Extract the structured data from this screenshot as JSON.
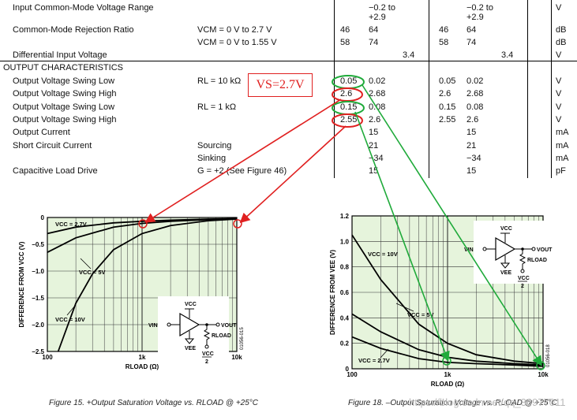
{
  "spec_table": {
    "rows": [
      {
        "param": "Input Common-Mode Voltage Range",
        "cond": "",
        "min1": "",
        "typ1": "−0.2 to",
        "typ1b": "+2.9",
        "max1": "",
        "min2": "",
        "typ2": "−0.2 to",
        "typ2b": "+2.9",
        "max2": "",
        "unit": "V"
      },
      {
        "param": "Common-Mode Rejection Ratio",
        "cond": "VCM = 0 V to 2.7 V",
        "min1": "46",
        "typ1": "64",
        "max1": "",
        "min2": "46",
        "typ2": "64",
        "max2": "",
        "unit": "dB"
      },
      {
        "param": "",
        "cond": "VCM = 0 V to 1.55 V",
        "min1": "58",
        "typ1": "74",
        "max1": "",
        "min2": "58",
        "typ2": "74",
        "max2": "",
        "unit": "dB"
      },
      {
        "param": "Differential Input Voltage",
        "cond": "",
        "min1": "",
        "typ1": "",
        "max1": "3.4",
        "min2": "",
        "typ2": "",
        "max2": "3.4",
        "unit": "V"
      },
      {
        "param": "OUTPUT CHARACTERISTICS",
        "section": true
      },
      {
        "param": "Output Voltage Swing Low",
        "cond": "RL = 10 kΩ",
        "min1": "0.05",
        "typ1": "0.02",
        "max1": "",
        "min2": "0.05",
        "typ2": "0.02",
        "max2": "",
        "unit": "V"
      },
      {
        "param": "Output Voltage Swing High",
        "cond": "",
        "min1": "2.6",
        "typ1": "2.68",
        "max1": "",
        "min2": "2.6",
        "typ2": "2.68",
        "max2": "",
        "unit": "V"
      },
      {
        "param": "Output Voltage Swing Low",
        "cond": "RL = 1 kΩ",
        "min1": "0.15",
        "typ1": "0.08",
        "max1": "",
        "min2": "0.15",
        "typ2": "0.08",
        "max2": "",
        "unit": "V"
      },
      {
        "param": "Output Voltage Swing High",
        "cond": "",
        "min1": "2.55",
        "typ1": "2.6",
        "max1": "",
        "min2": "2.55",
        "typ2": "2.6",
        "max2": "",
        "unit": "V"
      },
      {
        "param": "Output Current",
        "cond": "",
        "min1": "",
        "typ1": "15",
        "max1": "",
        "min2": "",
        "typ2": "15",
        "max2": "",
        "unit": "mA"
      },
      {
        "param": "Short Circuit Current",
        "cond": "Sourcing",
        "min1": "",
        "typ1": "21",
        "max1": "",
        "min2": "",
        "typ2": "21",
        "max2": "",
        "unit": "mA"
      },
      {
        "param": "",
        "cond": "Sinking",
        "min1": "",
        "typ1": "−34",
        "max1": "",
        "min2": "",
        "typ2": "−34",
        "max2": "",
        "unit": "mA"
      },
      {
        "param": "Capacitive Load Drive",
        "cond": "G = +2 (See Figure 46)",
        "min1": "",
        "typ1": "15",
        "max1": "",
        "min2": "",
        "typ2": "15",
        "max2": "",
        "unit": "pF"
      }
    ]
  },
  "annotation": {
    "label": "VS=2.7V",
    "colors": {
      "red": "#e02020",
      "green": "#1faa3a"
    }
  },
  "fig15": {
    "caption": "Figure 15. +Output Saturation Voltage vs. RLOAD @ +25°C",
    "code": "01056-015",
    "ylabel": "DIFFERENCE FROM VCC (V)",
    "xlabel": "RLOAD (Ω)",
    "yticks": [
      "0",
      "–0.5",
      "–1.0",
      "–1.5",
      "–2.0",
      "–2.5"
    ],
    "xticks": [
      "100",
      "1k",
      "10k"
    ],
    "curve_labels": [
      "VCC = 2.7V",
      "VCC = 5V",
      "VCC = 10V"
    ],
    "circuit": {
      "vcc": "VCC",
      "vin": "VIN",
      "vee": "VEE",
      "vout": "VOUT",
      "rload": "RLOAD",
      "vcc2_top": "VCC",
      "vcc2_bot": "2"
    }
  },
  "fig18": {
    "caption": "Figure 18. –Output Saturation Voltage vs. RLOAD @ +25°C",
    "code": "01056-018",
    "ylabel": "DIFFERENCE FROM VEE (V)",
    "xlabel": "RLOAD (Ω)",
    "yticks": [
      "1.2",
      "1.0",
      "0.8",
      "0.6",
      "0.4",
      "0.2",
      "0"
    ],
    "xticks": [
      "100",
      "1k",
      "10k"
    ],
    "curve_labels": [
      "VCC = 10V",
      "VCC = 5V",
      "VCC = 2.7V"
    ],
    "circuit": {
      "vcc": "VCC",
      "vin": "VIN",
      "vee": "VEE",
      "vout": "VOUT",
      "rload": "RLOAD",
      "vcc2_top": "VCC",
      "vcc2_bot": "2"
    }
  },
  "watermark": "https://blog.csdn.net/qq_36977011",
  "chart_data": [
    {
      "type": "line",
      "title": "Figure 15. +Output Saturation Voltage vs. RLOAD @ +25°C",
      "xlabel": "RLOAD (Ω)",
      "ylabel": "DIFFERENCE FROM VCC (V)",
      "xscale": "log",
      "xlim": [
        100,
        10000
      ],
      "ylim": [
        -2.5,
        0
      ],
      "series": [
        {
          "name": "VCC = 2.7V",
          "x": [
            100,
            200,
            500,
            1000,
            2000,
            5000,
            10000
          ],
          "y": [
            -0.3,
            -0.18,
            -0.1,
            -0.07,
            -0.05,
            -0.03,
            -0.02
          ]
        },
        {
          "name": "VCC = 5V",
          "x": [
            100,
            200,
            500,
            1000,
            2000,
            5000,
            10000
          ],
          "y": [
            -0.65,
            -0.38,
            -0.18,
            -0.11,
            -0.07,
            -0.04,
            -0.02
          ]
        },
        {
          "name": "VCC = 10V",
          "x": [
            130,
            200,
            300,
            500,
            1000,
            2000,
            5000,
            10000
          ],
          "y": [
            -2.5,
            -1.6,
            -1.05,
            -0.6,
            -0.3,
            -0.15,
            -0.06,
            -0.03
          ]
        }
      ]
    },
    {
      "type": "line",
      "title": "Figure 18. –Output Saturation Voltage vs. RLOAD @ +25°C",
      "xlabel": "RLOAD (Ω)",
      "ylabel": "DIFFERENCE FROM VEE (V)",
      "xscale": "log",
      "xlim": [
        100,
        10000
      ],
      "ylim": [
        0,
        1.2
      ],
      "series": [
        {
          "name": "VCC = 10V",
          "x": [
            100,
            200,
            500,
            1000,
            2000,
            5000,
            10000
          ],
          "y": [
            1.05,
            0.7,
            0.35,
            0.2,
            0.11,
            0.06,
            0.04
          ]
        },
        {
          "name": "VCC = 5V",
          "x": [
            100,
            200,
            500,
            1000,
            2000,
            5000,
            10000
          ],
          "y": [
            0.43,
            0.29,
            0.15,
            0.09,
            0.06,
            0.04,
            0.03
          ]
        },
        {
          "name": "VCC = 2.7V",
          "x": [
            100,
            200,
            500,
            1000,
            2000,
            5000,
            10000
          ],
          "y": [
            0.25,
            0.16,
            0.08,
            0.05,
            0.04,
            0.03,
            0.02
          ]
        }
      ]
    }
  ]
}
